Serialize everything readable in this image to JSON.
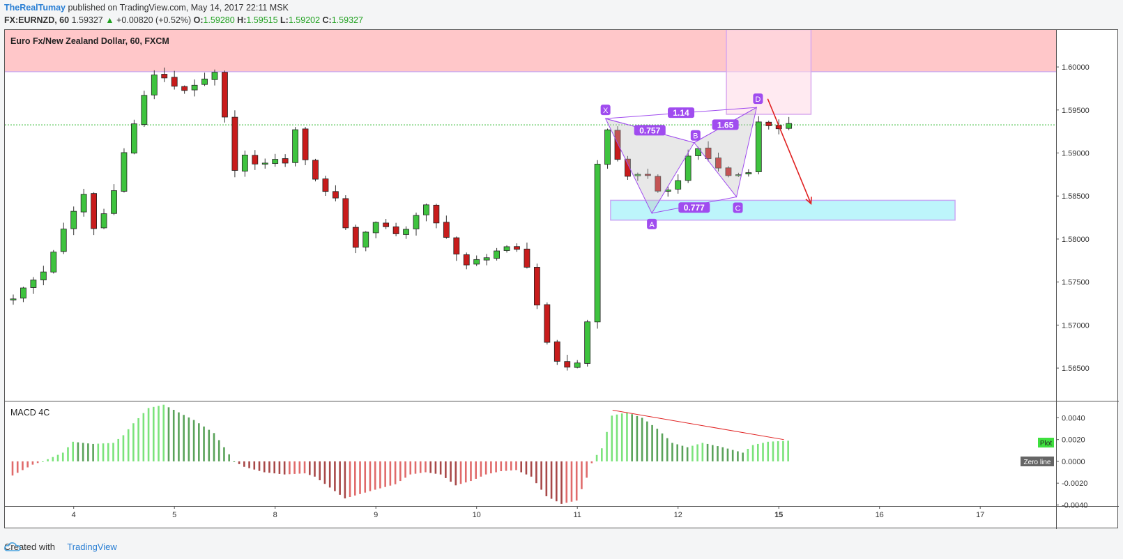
{
  "header": {
    "author": "TheRealTumay",
    "published_text": "published on TradingView.com, May 14, 2017 22:11 MSK",
    "symbol": "FX:EURNZD, 60",
    "last": "1.59327",
    "arrow": "▲",
    "change": "+0.00820 (+0.52%)",
    "o_label": "O:",
    "o_value": "1.59280",
    "h_label": "H:",
    "h_value": "1.59515",
    "l_label": "L:",
    "l_value": "1.59202",
    "c_label": "C:",
    "c_value": "1.59327"
  },
  "footer": {
    "created_with": "Created with",
    "brand": "TradingView"
  },
  "colors": {
    "up": "#3ec33e",
    "down": "#c81c1c",
    "resistance": "#ffc7c9",
    "support": "#bdf5fb",
    "pattern": "#a04cef"
  },
  "chart_data": [
    {
      "type": "candlestick",
      "title": "Euro Fx/New Zealand Dollar, 60, FXCM",
      "x_ticks": [
        "4",
        "5",
        "8",
        "9",
        "10",
        "11",
        "12",
        "15",
        "16",
        "17"
      ],
      "y_ticks": [
        "1.60000",
        "1.59500",
        "1.59000",
        "1.58500",
        "1.58000",
        "1.57500",
        "1.57000",
        "1.56500"
      ],
      "ylim": [
        1.5612,
        1.6043
      ],
      "last_price_line": 1.59327,
      "resistance_zone": [
        1.59945,
        1.60435
      ],
      "support_zone": [
        1.5822,
        1.5845
      ],
      "price_path": [
        [
          0,
          1.5732
        ],
        [
          3,
          1.5762
        ],
        [
          5,
          1.581
        ],
        [
          7,
          1.5852
        ],
        [
          8,
          1.5812
        ],
        [
          9.5,
          1.5838
        ],
        [
          11,
          1.59
        ],
        [
          12.5,
          1.595
        ],
        [
          13.5,
          1.5985
        ],
        [
          14.5,
          1.5993
        ],
        [
          16,
          1.5978
        ],
        [
          17.5,
          1.5972
        ],
        [
          19,
          1.5985
        ],
        [
          20,
          1.5992
        ],
        [
          21,
          1.594
        ],
        [
          22,
          1.5882
        ],
        [
          23,
          1.5897
        ],
        [
          24,
          1.5885
        ],
        [
          25.5,
          1.5892
        ],
        [
          27,
          1.589
        ],
        [
          28,
          1.5925
        ],
        [
          29.5,
          1.5878
        ],
        [
          31,
          1.5855
        ],
        [
          32.5,
          1.5845
        ],
        [
          33.5,
          1.5782
        ],
        [
          34.5,
          1.5798
        ],
        [
          35.5,
          1.5822
        ],
        [
          37,
          1.5812
        ],
        [
          38.5,
          1.5805
        ],
        [
          39.5,
          1.582
        ],
        [
          41,
          1.5838
        ],
        [
          42.5,
          1.5808
        ],
        [
          43.5,
          1.58
        ],
        [
          44.5,
          1.5765
        ],
        [
          46,
          1.5775
        ],
        [
          47.5,
          1.5783
        ],
        [
          48.5,
          1.579
        ],
        [
          50,
          1.5786
        ],
        [
          51.5,
          1.5758
        ],
        [
          52.5,
          1.569
        ],
        [
          53.5,
          1.567
        ],
        [
          54.5,
          1.565
        ],
        [
          55.5,
          1.5648
        ],
        [
          56.5,
          1.5666
        ],
        [
          57.2,
          1.572
        ],
        [
          57.7,
          1.5855
        ],
        [
          58.3,
          1.5918
        ],
        [
          58.8,
          1.5935
        ],
        [
          59.5,
          1.5905
        ],
        [
          60.5,
          1.588
        ],
        [
          61.5,
          1.5868
        ],
        [
          62.5,
          1.5878
        ],
        [
          63.5,
          1.5865
        ],
        [
          64.5,
          1.585
        ],
        [
          65.5,
          1.5862
        ],
        [
          66.5,
          1.5878
        ],
        [
          67.5,
          1.591
        ],
        [
          68.5,
          1.59
        ],
        [
          69.5,
          1.5888
        ],
        [
          70.5,
          1.5876
        ],
        [
          71.5,
          1.5872
        ],
        [
          72.5,
          1.5878
        ],
        [
          73.1,
          1.588
        ],
        [
          73.8,
          1.5935
        ],
        [
          74.5,
          1.5935
        ],
        [
          75.5,
          1.593
        ],
        [
          76.5,
          1.5929
        ],
        [
          77,
          1.59327
        ]
      ],
      "harmonic_pattern": {
        "points": [
          {
            "label": "X",
            "x": 58.8,
            "price": 1.594
          },
          {
            "label": "A",
            "x": 63.4,
            "price": 1.583
          },
          {
            "label": "B",
            "x": 67.6,
            "price": 1.5912
          },
          {
            "label": "C",
            "x": 71.8,
            "price": 1.5849
          },
          {
            "label": "D",
            "x": 73.8,
            "price": 1.5953
          }
        ],
        "ratios": [
          "1.14",
          "0.757",
          "0.777",
          "1.65"
        ]
      }
    },
    {
      "type": "bar",
      "title": "MACD 4C",
      "y_ticks": [
        "0.0040",
        "0.0020",
        "0.0000",
        "-0.0020",
        "-0.0040"
      ],
      "ylim": [
        -0.0041,
        0.0055
      ],
      "legend": [
        "Plot",
        "Zero line"
      ],
      "hist_path": [
        [
          0,
          -0.0013
        ],
        [
          2,
          -0.0003
        ],
        [
          3,
          0.0
        ],
        [
          5,
          0.0008
        ],
        [
          6,
          0.0018
        ],
        [
          8,
          0.0016
        ],
        [
          10,
          0.0017
        ],
        [
          11,
          0.0024
        ],
        [
          12,
          0.0035
        ],
        [
          13.5,
          0.0049
        ],
        [
          15,
          0.0052
        ],
        [
          16.5,
          0.0045
        ],
        [
          18,
          0.0038
        ],
        [
          20,
          0.0026
        ],
        [
          21,
          0.0013
        ],
        [
          22,
          0.0
        ],
        [
          23,
          -0.0005
        ],
        [
          25,
          -0.001
        ],
        [
          27,
          -0.0012
        ],
        [
          29,
          -0.0011
        ],
        [
          30,
          -0.0014
        ],
        [
          31.5,
          -0.0024
        ],
        [
          33,
          -0.0034
        ],
        [
          34.5,
          -0.003
        ],
        [
          36,
          -0.0026
        ],
        [
          38,
          -0.0021
        ],
        [
          39.5,
          -0.0012
        ],
        [
          41,
          -0.001
        ],
        [
          42.5,
          -0.0012
        ],
        [
          44,
          -0.0022
        ],
        [
          45.5,
          -0.0018
        ],
        [
          47,
          -0.0012
        ],
        [
          48.5,
          -0.0009
        ],
        [
          50,
          -0.0008
        ],
        [
          51.5,
          -0.0014
        ],
        [
          53,
          -0.0032
        ],
        [
          54.5,
          -0.0039
        ],
        [
          56,
          -0.0036
        ],
        [
          57,
          -0.0015
        ],
        [
          57.6,
          0.0001
        ],
        [
          58.5,
          0.0012
        ],
        [
          59.5,
          0.0042
        ],
        [
          61,
          0.0045
        ],
        [
          62.5,
          0.004
        ],
        [
          64,
          0.003
        ],
        [
          65.5,
          0.0017
        ],
        [
          67,
          0.0013
        ],
        [
          68.5,
          0.0017
        ],
        [
          70.5,
          0.0013
        ],
        [
          72.5,
          0.0008
        ],
        [
          73.5,
          0.0015
        ],
        [
          75,
          0.0018
        ],
        [
          77,
          0.0019
        ]
      ]
    }
  ]
}
